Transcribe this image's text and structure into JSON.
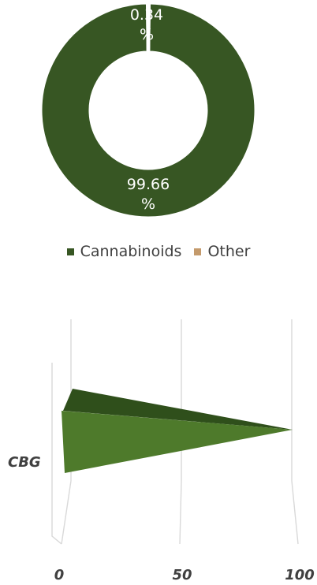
{
  "chart_data": [
    {
      "type": "pie",
      "donut": true,
      "title": "",
      "slices": [
        {
          "name": "Cannabinoids",
          "value": 99.66,
          "label_line1": "99.66",
          "label_line2": "%",
          "color": "#375623"
        },
        {
          "name": "Other",
          "value": 0.34,
          "label_line1": "0.34",
          "label_line2": "%",
          "color": "#c49a6c"
        }
      ],
      "legend": {
        "position": "bottom",
        "items": [
          "Cannabinoids",
          "Other"
        ]
      }
    },
    {
      "type": "bar",
      "orientation": "horizontal",
      "style": "3d-cone",
      "title": "",
      "categories": [
        "CBG"
      ],
      "values": [
        99.66
      ],
      "color": "#4e7a2b",
      "color_dark": "#2f4f1b",
      "xlim": [
        0,
        100
      ],
      "xticks": [
        "0",
        "50",
        "100"
      ],
      "grid": true
    }
  ]
}
